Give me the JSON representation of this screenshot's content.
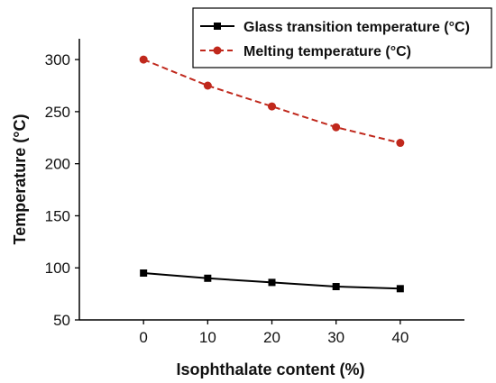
{
  "chart_data": {
    "type": "line",
    "title": "",
    "xlabel": "Isophthalate content (%)",
    "ylabel": "Temperature (°C)",
    "x": [
      0,
      10,
      20,
      30,
      40
    ],
    "xlim": [
      -10,
      50
    ],
    "ylim": [
      50,
      320
    ],
    "xticks": [
      0,
      10,
      20,
      30,
      40
    ],
    "yticks": [
      50,
      100,
      150,
      200,
      250,
      300
    ],
    "grid": false,
    "legend_position": "top-right",
    "series": [
      {
        "name": "Glass transition temperature (°C)",
        "values": [
          95,
          90,
          86,
          82,
          80
        ],
        "color": "#000000",
        "line_style": "solid",
        "marker": "square"
      },
      {
        "name": "Melting temperature (°C)",
        "values": [
          300,
          275,
          255,
          235,
          220
        ],
        "color": "#c0281c",
        "line_style": "dashed",
        "marker": "circle"
      }
    ]
  }
}
